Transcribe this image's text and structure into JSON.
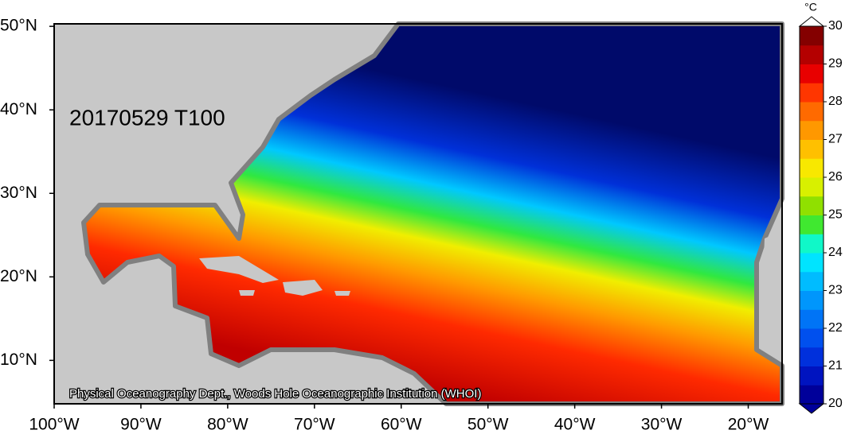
{
  "map": {
    "label": "20170529 T100",
    "credit": "Physical Oceanography Dept., Woods Hole Oceanographic Institution (WHOI)",
    "lon_lim": [
      -100,
      -16.1
    ],
    "lat_lim": [
      4.8,
      50.3
    ],
    "lon_ticks": [
      {
        "value": -100,
        "label": "100°W"
      },
      {
        "value": -90,
        "label": "90°W"
      },
      {
        "value": -80,
        "label": "80°W"
      },
      {
        "value": -70,
        "label": "70°W"
      },
      {
        "value": -60,
        "label": "60°W"
      },
      {
        "value": -50,
        "label": "50°W"
      },
      {
        "value": -40,
        "label": "40°W"
      },
      {
        "value": -30,
        "label": "30°W"
      },
      {
        "value": -20,
        "label": "20°W"
      }
    ],
    "lat_ticks": [
      {
        "value": 10,
        "label": "10°N"
      },
      {
        "value": 20,
        "label": "20°N"
      },
      {
        "value": 30,
        "label": "30°N"
      },
      {
        "value": 40,
        "label": "40°N"
      },
      {
        "value": 50,
        "label": "50°N"
      }
    ]
  },
  "colorbar": {
    "unit": "°C",
    "ticks": [
      20,
      21,
      22,
      23,
      24,
      25,
      26,
      27,
      28,
      29,
      30
    ],
    "colors": [
      "#00009a",
      "#0014c0",
      "#0030dc",
      "#0050ee",
      "#0074f6",
      "#0096fc",
      "#00bcff",
      "#00e4ff",
      "#10f8c8",
      "#40e830",
      "#90e000",
      "#d8f000",
      "#f8e800",
      "#ffc000",
      "#ff9800",
      "#ff6a00",
      "#ff3600",
      "#e80000",
      "#b40000",
      "#840000"
    ]
  }
}
